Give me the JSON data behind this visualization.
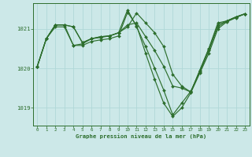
{
  "bg_color": "#cce8e8",
  "grid_color": "#b0d8d8",
  "line_color": "#2d6e2d",
  "marker_color": "#2d6e2d",
  "title": "Graphe pression niveau de la mer (hPa)",
  "title_color": "#2d6e2d",
  "tick_color": "#2d6e2d",
  "xlim": [
    -0.5,
    23.5
  ],
  "ylim": [
    1018.55,
    1021.65
  ],
  "yticks": [
    1019,
    1020,
    1021
  ],
  "xticks": [
    0,
    1,
    2,
    3,
    4,
    5,
    6,
    7,
    8,
    9,
    10,
    11,
    12,
    13,
    14,
    15,
    16,
    17,
    18,
    19,
    20,
    21,
    22,
    23
  ],
  "series": [
    [
      1020.05,
      1020.75,
      1021.1,
      1021.1,
      1021.05,
      1020.65,
      1020.75,
      1020.8,
      1020.82,
      1020.9,
      1021.05,
      1021.4,
      1021.15,
      1020.9,
      1020.55,
      1019.85,
      1019.55,
      1019.4,
      1019.95,
      1020.5,
      1021.15,
      1021.2,
      1021.3,
      1021.38
    ],
    [
      1020.05,
      1020.75,
      1021.1,
      1021.1,
      1021.05,
      1020.65,
      1020.75,
      1020.8,
      1020.82,
      1020.9,
      1021.1,
      1021.15,
      1020.8,
      1020.45,
      1020.05,
      1019.55,
      1019.5,
      1019.4,
      1019.95,
      1020.5,
      1021.1,
      1021.2,
      1021.3,
      1021.38
    ],
    [
      1020.05,
      1020.75,
      1021.1,
      1021.1,
      1020.58,
      1020.62,
      1020.75,
      1020.78,
      1020.82,
      1020.9,
      1021.48,
      1021.05,
      1020.55,
      1020.0,
      1019.45,
      1018.82,
      1019.12,
      1019.42,
      1019.9,
      1020.45,
      1021.05,
      1021.2,
      1021.3,
      1021.38
    ],
    [
      1020.05,
      1020.75,
      1021.05,
      1021.05,
      1020.58,
      1020.58,
      1020.68,
      1020.72,
      1020.75,
      1020.82,
      1021.42,
      1021.08,
      1020.38,
      1019.72,
      1019.12,
      1018.78,
      1019.0,
      1019.38,
      1019.88,
      1020.38,
      1021.0,
      1021.18,
      1021.28,
      1021.38
    ]
  ]
}
